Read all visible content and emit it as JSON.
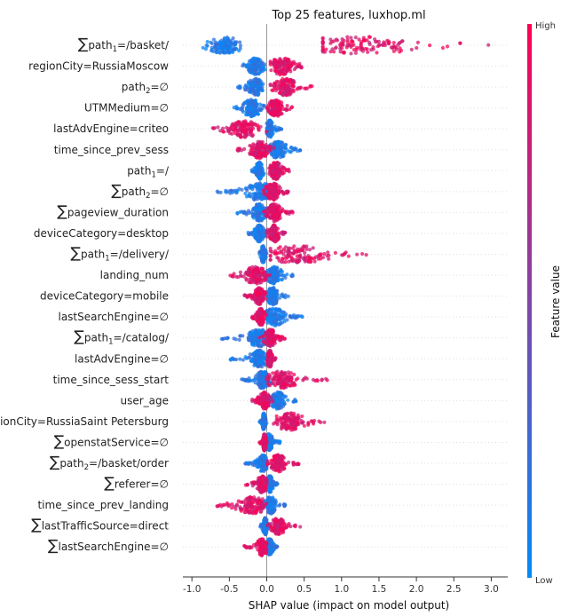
{
  "chart_data": {
    "type": "scatter",
    "subtype": "shap-beeswarm-summary",
    "title": "Top 25 features, luxhop.ml",
    "xlabel": "SHAP value (impact on model output)",
    "xlim": [
      -1.1,
      3.25
    ],
    "xticks": [
      -1.0,
      -0.5,
      0.0,
      0.5,
      1.0,
      1.5,
      2.0,
      2.5,
      3.0
    ],
    "xtick_labels": [
      "-1.0",
      "-0.5",
      "0.0",
      "0.5",
      "1.0",
      "1.5",
      "2.0",
      "2.5",
      "3.0"
    ],
    "colorbar": {
      "label": "Feature value",
      "high_label": "High",
      "low_label": "Low",
      "high_color": "#ff0052",
      "low_color": "#008bfb"
    },
    "zero_line": true,
    "features": [
      {
        "name": "path",
        "sub": "1",
        "suffix": "=/basket/",
        "sum": true,
        "low": {
          "min": -0.85,
          "max": -0.35,
          "center": -0.55,
          "width": 0.22
        },
        "high": {
          "min": 0.75,
          "max": 3.0,
          "center": 1.2,
          "width": 0.9
        }
      },
      {
        "name": "regionCity=RussiaMoscow",
        "sum": false,
        "low": {
          "min": -0.35,
          "max": -0.02,
          "center": -0.15,
          "width": 0.1
        },
        "high": {
          "min": 0.05,
          "max": 0.5,
          "center": 0.2,
          "width": 0.15
        }
      },
      {
        "name": "path",
        "sub": "2",
        "suffix": "=∅",
        "sum": false,
        "low": {
          "min": -0.4,
          "max": -0.05,
          "center": -0.15,
          "width": 0.1
        },
        "high": {
          "min": 0.05,
          "max": 0.65,
          "center": 0.25,
          "width": 0.15
        }
      },
      {
        "name": "UTMMedium=∅",
        "sum": false,
        "low": {
          "min": -0.45,
          "max": 0.0,
          "center": -0.2,
          "width": 0.12
        },
        "high": {
          "min": 0.0,
          "max": 0.35,
          "center": 0.12,
          "width": 0.1
        }
      },
      {
        "name": "lastAdvEngine=criteo",
        "sum": false,
        "low": {
          "min": 0.0,
          "max": 0.2,
          "center": 0.04,
          "width": 0.05
        },
        "high": {
          "min": -0.75,
          "max": 0.0,
          "center": -0.3,
          "width": 0.2
        }
      },
      {
        "name": "time_since_prev_sess",
        "sum": false,
        "low": {
          "min": -0.05,
          "max": 0.45,
          "center": 0.15,
          "width": 0.12
        },
        "high": {
          "min": -0.4,
          "max": 0.1,
          "center": -0.1,
          "width": 0.12
        }
      },
      {
        "name": "path",
        "sub": "1",
        "suffix": "=/",
        "sum": false,
        "low": {
          "min": -0.2,
          "max": -0.02,
          "center": -0.1,
          "width": 0.05
        },
        "high": {
          "min": 0.0,
          "max": 0.3,
          "center": 0.12,
          "width": 0.08
        }
      },
      {
        "name": "path",
        "sub": "2",
        "suffix": "=∅",
        "sum": true,
        "low": {
          "min": -0.7,
          "max": 0.0,
          "center": -0.1,
          "width": 0.2
        },
        "high": {
          "min": -0.05,
          "max": 0.3,
          "center": 0.08,
          "width": 0.1
        }
      },
      {
        "name": "pageview_duration",
        "sum": true,
        "low": {
          "min": -0.4,
          "max": 0.0,
          "center": -0.1,
          "width": 0.1
        },
        "high": {
          "min": -0.05,
          "max": 0.35,
          "center": 0.1,
          "width": 0.1
        }
      },
      {
        "name": "deviceCategory=desktop",
        "sum": false,
        "low": {
          "min": -0.25,
          "max": -0.02,
          "center": -0.1,
          "width": 0.06
        },
        "high": {
          "min": 0.0,
          "max": 0.25,
          "center": 0.1,
          "width": 0.07
        }
      },
      {
        "name": "path",
        "sub": "1",
        "suffix": "=/delivery/",
        "sum": true,
        "low": {
          "min": -0.1,
          "max": 0.0,
          "center": -0.05,
          "width": 0.03
        },
        "high": {
          "min": 0.05,
          "max": 1.35,
          "center": 0.4,
          "width": 0.45
        }
      },
      {
        "name": "landing_num",
        "sum": false,
        "low": {
          "min": -0.05,
          "max": 0.35,
          "center": 0.1,
          "width": 0.1
        },
        "high": {
          "min": -0.5,
          "max": 0.05,
          "center": -0.15,
          "width": 0.15
        }
      },
      {
        "name": "deviceCategory=mobile",
        "sum": false,
        "low": {
          "min": 0.0,
          "max": 0.3,
          "center": 0.08,
          "width": 0.08
        },
        "high": {
          "min": -0.3,
          "max": 0.0,
          "center": -0.1,
          "width": 0.07
        }
      },
      {
        "name": "lastSearchEngine=∅",
        "sum": false,
        "low": {
          "min": 0.0,
          "max": 0.5,
          "center": 0.1,
          "width": 0.15
        },
        "high": {
          "min": -0.2,
          "max": 0.0,
          "center": -0.08,
          "width": 0.05
        }
      },
      {
        "name": "path",
        "sub": "1",
        "suffix": "=/catalog/",
        "sum": true,
        "low": {
          "min": -0.65,
          "max": 0.0,
          "center": -0.1,
          "width": 0.15
        },
        "high": {
          "min": -0.1,
          "max": 0.25,
          "center": 0.05,
          "width": 0.08
        }
      },
      {
        "name": "lastAdvEngine=∅",
        "sum": false,
        "low": {
          "min": -0.5,
          "max": 0.0,
          "center": -0.1,
          "width": 0.12
        },
        "high": {
          "min": 0.0,
          "max": 0.12,
          "center": 0.04,
          "width": 0.03
        }
      },
      {
        "name": "time_since_sess_start",
        "sum": false,
        "low": {
          "min": -0.35,
          "max": 0.1,
          "center": -0.05,
          "width": 0.1
        },
        "high": {
          "min": 0.0,
          "max": 0.85,
          "center": 0.2,
          "width": 0.2
        }
      },
      {
        "name": "user_age",
        "sum": false,
        "low": {
          "min": 0.0,
          "max": 0.4,
          "center": 0.15,
          "width": 0.1
        },
        "high": {
          "min": -0.2,
          "max": 0.1,
          "center": -0.03,
          "width": 0.07
        }
      },
      {
        "name": "regionCity=RussiaSaint Petersburg",
        "sum": false,
        "low": {
          "min": -0.1,
          "max": 0.0,
          "center": -0.04,
          "width": 0.02
        },
        "high": {
          "min": 0.05,
          "max": 0.8,
          "center": 0.3,
          "width": 0.2
        }
      },
      {
        "name": "openstatService=∅",
        "sum": true,
        "low": {
          "min": 0.0,
          "max": 0.2,
          "center": 0.03,
          "width": 0.05
        },
        "high": {
          "min": -0.1,
          "max": 0.0,
          "center": -0.03,
          "width": 0.02
        }
      },
      {
        "name": "path",
        "sub": "2",
        "suffix": "=/basket/order",
        "sum": true,
        "low": {
          "min": -0.3,
          "max": 0.0,
          "center": -0.05,
          "width": 0.07
        },
        "high": {
          "min": 0.0,
          "max": 0.45,
          "center": 0.15,
          "width": 0.1
        }
      },
      {
        "name": "referer=∅",
        "sum": true,
        "low": {
          "min": 0.0,
          "max": 0.15,
          "center": 0.04,
          "width": 0.04
        },
        "high": {
          "min": -0.3,
          "max": 0.0,
          "center": -0.06,
          "width": 0.07
        }
      },
      {
        "name": "time_since_prev_landing",
        "sum": false,
        "low": {
          "min": -0.1,
          "max": 0.25,
          "center": 0.05,
          "width": 0.07
        },
        "high": {
          "min": -0.75,
          "max": 0.05,
          "center": -0.2,
          "width": 0.2
        }
      },
      {
        "name": "lastTrafficSource=direct",
        "sum": true,
        "low": {
          "min": -0.1,
          "max": 0.05,
          "center": -0.02,
          "width": 0.03
        },
        "high": {
          "min": 0.0,
          "max": 0.45,
          "center": 0.15,
          "width": 0.1
        }
      },
      {
        "name": "lastSearchEngine=∅",
        "sum": true,
        "low": {
          "min": 0.0,
          "max": 0.15,
          "center": 0.04,
          "width": 0.04
        },
        "high": {
          "min": -0.3,
          "max": 0.0,
          "center": -0.06,
          "width": 0.07
        }
      }
    ]
  }
}
